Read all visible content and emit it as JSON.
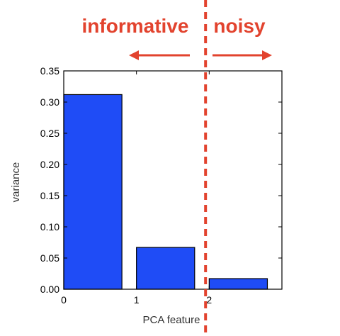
{
  "chart_data": {
    "type": "bar",
    "title": "",
    "xlabel": "PCA feature",
    "ylabel": "variance",
    "x": [
      0,
      1,
      2
    ],
    "values": [
      0.312,
      0.067,
      0.017
    ],
    "xticks": [
      "0",
      "1",
      "2"
    ],
    "yticks": [
      "0.00",
      "0.05",
      "0.10",
      "0.15",
      "0.20",
      "0.25",
      "0.30",
      "0.35"
    ],
    "ylim": [
      0,
      0.35
    ],
    "xlim": [
      0,
      3
    ],
    "bar_width": 0.8,
    "bar_color": "#1f4cf6",
    "grid": false,
    "annotations": {
      "left_label": "informative",
      "right_label": "noisy",
      "divider_x": 1.95,
      "color": "#e2432e"
    }
  }
}
